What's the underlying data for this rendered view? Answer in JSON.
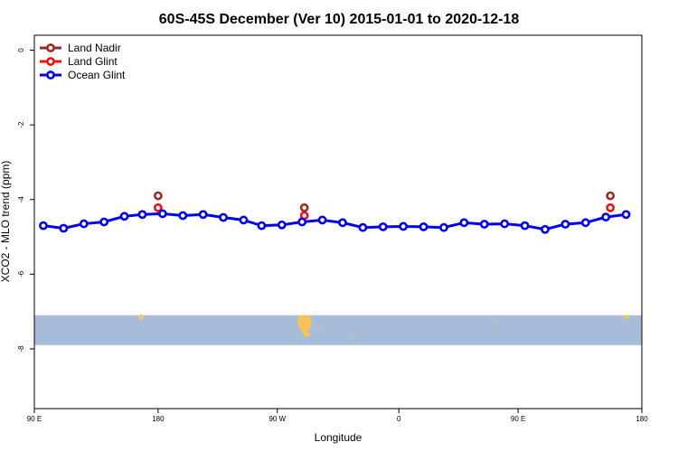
{
  "chart_data": {
    "type": "line",
    "title": "60S-45S December (Ver 10)   2015-01-01 to 2020-12-18",
    "xlabel": "Longitude",
    "ylabel": "XCO2 - MLO trend (ppm)",
    "xlim": [
      -90,
      180
    ],
    "ylim": [
      -9.6,
      0.4
    ],
    "x_ticks": [
      {
        "value": -90,
        "label": "90 E"
      },
      {
        "value": -35,
        "label": "180"
      },
      {
        "value": 18,
        "label": "90 W"
      },
      {
        "value": 72,
        "label": "0"
      },
      {
        "value": 125,
        "label": "90 E"
      },
      {
        "value": 180,
        "label": "180"
      }
    ],
    "y_ticks": [
      {
        "value": 0,
        "label": "0"
      },
      {
        "value": -2,
        "label": "-2"
      },
      {
        "value": -4,
        "label": "-4"
      },
      {
        "value": -6,
        "label": "-6"
      },
      {
        "value": -8,
        "label": "-8"
      }
    ],
    "map_band": {
      "y_top": -7.1,
      "y_bottom": -7.9,
      "ocean_color": "#a7bcd9",
      "land_color": "#f5c35a"
    },
    "legend": {
      "position": "top-left"
    },
    "series": [
      {
        "name": "Land Nadir",
        "color": "#9a2a23",
        "show_line": false,
        "x": [
          -35,
          30,
          166
        ],
        "y": [
          -3.9,
          -4.22,
          -3.9
        ]
      },
      {
        "name": "Land Glint",
        "color": "#ee1111",
        "show_line": false,
        "x": [
          -35,
          30,
          166
        ],
        "y": [
          -4.22,
          -4.43,
          -4.22
        ]
      },
      {
        "name": "Ocean Glint",
        "color": "#0000ee",
        "show_line": true,
        "x": [
          -86,
          -77,
          -68,
          -59,
          -50,
          -42,
          -33,
          -24,
          -15,
          -6,
          3,
          11,
          20,
          29,
          38,
          47,
          56,
          65,
          74,
          83,
          92,
          101,
          110,
          119,
          128,
          137,
          146,
          155,
          164,
          173
        ],
        "y": [
          -4.7,
          -4.77,
          -4.65,
          -4.6,
          -4.45,
          -4.4,
          -4.38,
          -4.43,
          -4.4,
          -4.48,
          -4.55,
          -4.7,
          -4.68,
          -4.6,
          -4.55,
          -4.62,
          -4.75,
          -4.73,
          -4.72,
          -4.73,
          -4.75,
          -4.62,
          -4.66,
          -4.65,
          -4.7,
          -4.8,
          -4.66,
          -4.62,
          -4.47,
          -4.4
        ]
      }
    ]
  }
}
